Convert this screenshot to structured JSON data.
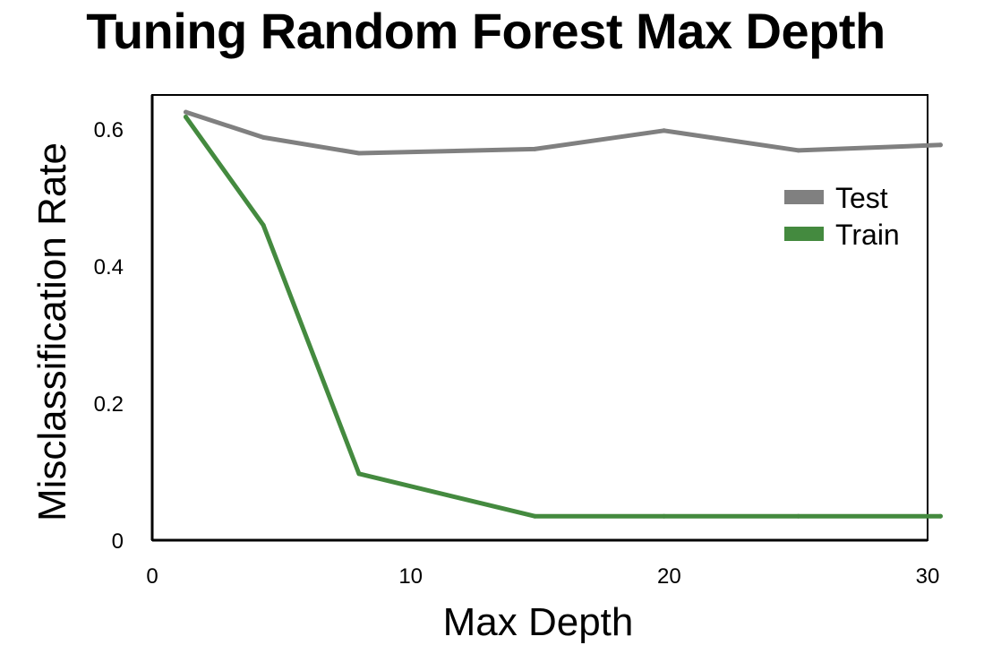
{
  "chart_data": {
    "type": "line",
    "title": "Tuning Random Forest Max Depth",
    "xlabel": "Max Depth",
    "ylabel": "Misclassification Rate",
    "xlim": [
      0,
      30
    ],
    "ylim": [
      0,
      0.65
    ],
    "xticks": [
      0,
      10,
      20,
      30
    ],
    "xtick_labels": [
      "0",
      "10",
      "20",
      "30"
    ],
    "yticks": [
      0,
      0.2,
      0.4,
      0.6
    ],
    "ytick_labels": [
      "0",
      "0.2",
      "0.4",
      "0.6"
    ],
    "grid": false,
    "legend_position": "top-right",
    "series": [
      {
        "name": "Test",
        "color": "#808080",
        "x": [
          1.3,
          4.3,
          8.0,
          14.8,
          19.8,
          25.0,
          30.5
        ],
        "y": [
          0.625,
          0.588,
          0.565,
          0.571,
          0.598,
          0.569,
          0.577
        ]
      },
      {
        "name": "Train",
        "color": "#448a3f",
        "x": [
          1.3,
          4.3,
          8.0,
          14.8,
          19.8,
          25.0,
          30.5
        ],
        "y": [
          0.618,
          0.46,
          0.097,
          0.035,
          0.035,
          0.035,
          0.035
        ]
      }
    ]
  }
}
